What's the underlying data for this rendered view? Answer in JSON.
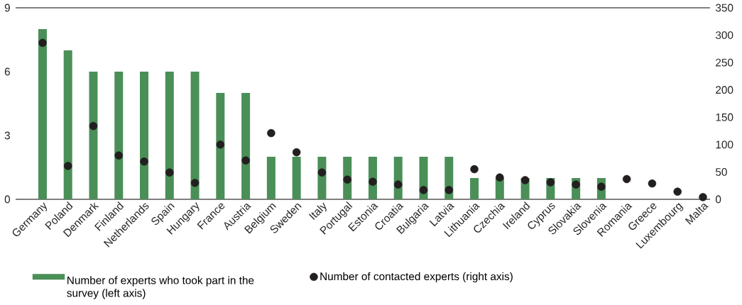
{
  "chart_data": {
    "type": "bar",
    "categories": [
      "Germany",
      "Poland",
      "Denmark",
      "Finland",
      "Netherlands",
      "Spain",
      "Hungary",
      "France",
      "Austria",
      "Belgium",
      "Sweden",
      "Italy",
      "Portugal",
      "Estonia",
      "Croatia",
      "Bulgaria",
      "Latvia",
      "Lithuania",
      "Czechia",
      "Ireland",
      "Cyprus",
      "Slovakia",
      "Slovenia",
      "Romania",
      "Greece",
      "Luxembourg",
      "Malta"
    ],
    "series": [
      {
        "name": "Number of experts who took part in the survey (left axis)",
        "color": "#4a8f57",
        "values": [
          8,
          7,
          6,
          6,
          6,
          6,
          6,
          5,
          5,
          2,
          2,
          2,
          2,
          2,
          2,
          2,
          2,
          1,
          1,
          1,
          1,
          1,
          1,
          0,
          0,
          0,
          0
        ]
      },
      {
        "name": "Number of contacted experts (right axis)",
        "type": "scatter",
        "axis": "y2",
        "marker": "circle",
        "color": "#231f20",
        "values": [
          286,
          61,
          134,
          80,
          69,
          49,
          30,
          100,
          71,
          121,
          86,
          49,
          36,
          32,
          27,
          17,
          17,
          55,
          40,
          35,
          31,
          27,
          23,
          37,
          29,
          14,
          4
        ]
      }
    ],
    "ylim": [
      0,
      9
    ],
    "yticks": [
      0,
      3,
      6,
      9
    ],
    "y2lim": [
      0,
      350
    ],
    "y2ticks": [
      0,
      50,
      100,
      150,
      200,
      250,
      300,
      350
    ],
    "legend": "bottom",
    "grid": false
  }
}
